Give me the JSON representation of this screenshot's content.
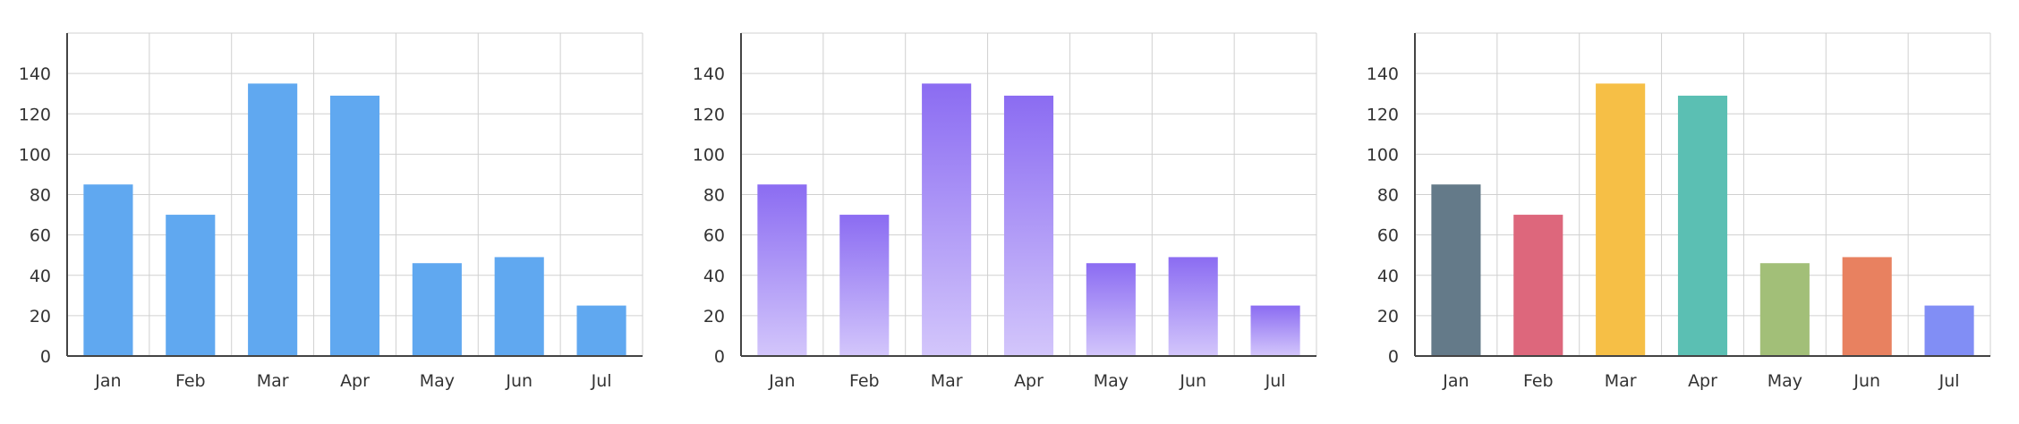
{
  "colors": {
    "solid_blue": "#60a8f0",
    "purple_top": "#8b6cf2",
    "purple_bottom": "#d3c6fb",
    "grid": "#d0d0d0",
    "axis": "#444444"
  },
  "chart_data": [
    {
      "type": "bar",
      "style": "solid",
      "categories": [
        "Jan",
        "Feb",
        "Mar",
        "Apr",
        "May",
        "Jun",
        "Jul"
      ],
      "values": [
        85,
        70,
        135,
        129,
        46,
        49,
        25
      ],
      "ylim": [
        0,
        160
      ],
      "yticks": [
        "0",
        "20",
        "40",
        "60",
        "80",
        "100",
        "120",
        "140"
      ],
      "grid": true,
      "bar_colors": [
        "#60a8f0",
        "#60a8f0",
        "#60a8f0",
        "#60a8f0",
        "#60a8f0",
        "#60a8f0",
        "#60a8f0"
      ]
    },
    {
      "type": "bar",
      "style": "gradient",
      "categories": [
        "Jan",
        "Feb",
        "Mar",
        "Apr",
        "May",
        "Jun",
        "Jul"
      ],
      "values": [
        85,
        70,
        135,
        129,
        46,
        49,
        25
      ],
      "ylim": [
        0,
        160
      ],
      "yticks": [
        "0",
        "20",
        "40",
        "60",
        "80",
        "100",
        "120",
        "140"
      ],
      "grid": true,
      "bar_colors": [
        "#8b6cf2",
        "#8b6cf2",
        "#8b6cf2",
        "#8b6cf2",
        "#8b6cf2",
        "#8b6cf2",
        "#8b6cf2"
      ]
    },
    {
      "type": "bar",
      "style": "solid",
      "categories": [
        "Jan",
        "Feb",
        "Mar",
        "Apr",
        "May",
        "Jun",
        "Jul"
      ],
      "values": [
        85,
        70,
        135,
        129,
        46,
        49,
        25
      ],
      "ylim": [
        0,
        160
      ],
      "yticks": [
        "0",
        "20",
        "40",
        "60",
        "80",
        "100",
        "120",
        "140"
      ],
      "grid": true,
      "bar_colors": [
        "#647a89",
        "#dd677c",
        "#f6bf46",
        "#5bbfb3",
        "#a2bf78",
        "#e88160",
        "#818ef5"
      ]
    }
  ]
}
